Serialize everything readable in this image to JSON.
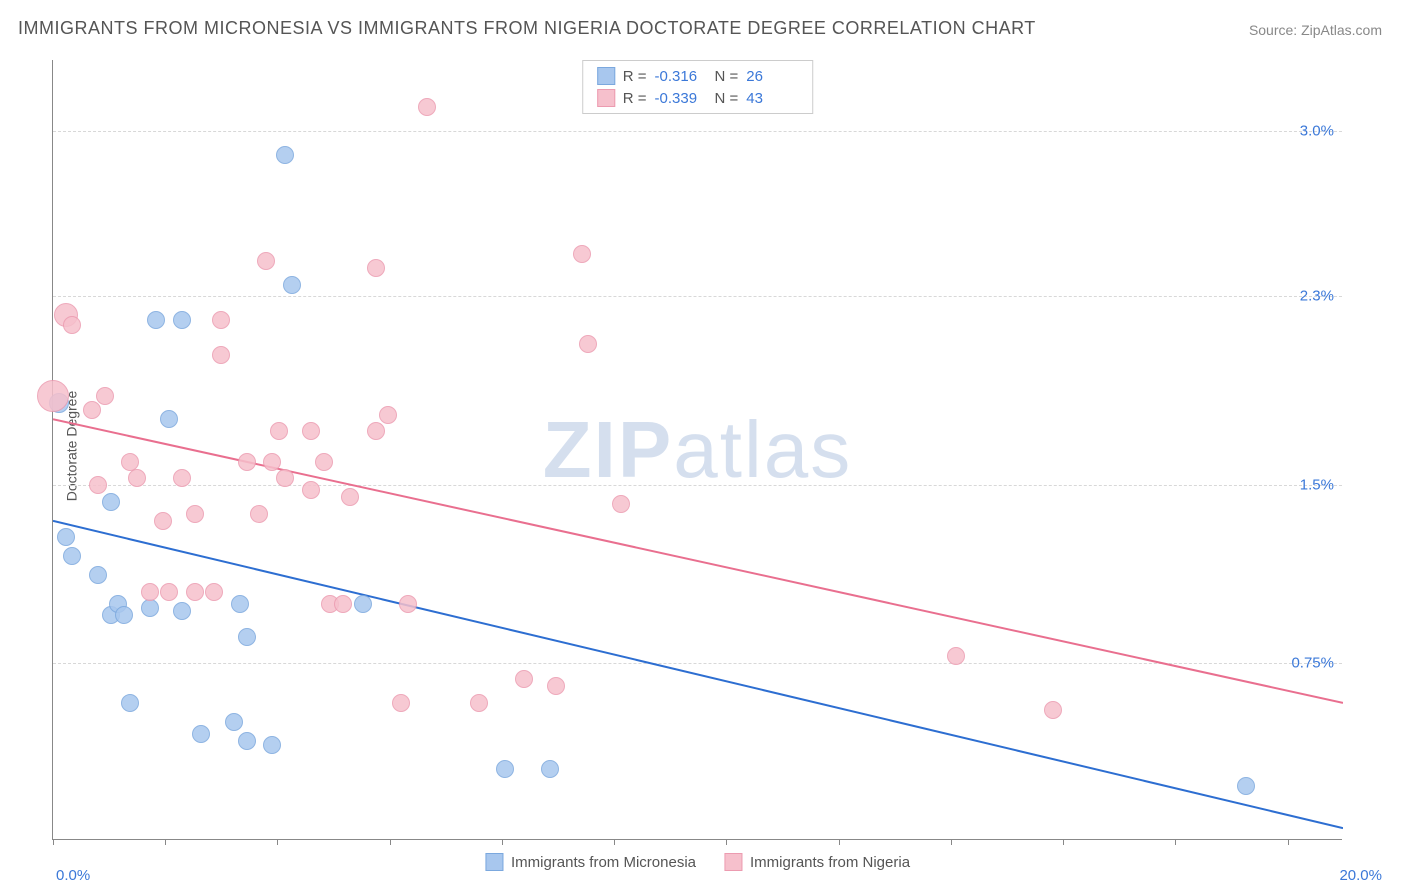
{
  "title": "IMMIGRANTS FROM MICRONESIA VS IMMIGRANTS FROM NIGERIA DOCTORATE DEGREE CORRELATION CHART",
  "source": "Source: ZipAtlas.com",
  "ylabel": "Doctorate Degree",
  "watermark_bold": "ZIP",
  "watermark_light": "atlas",
  "chart": {
    "type": "scatter",
    "background_color": "#ffffff",
    "grid_color": "#d8d8d8",
    "axis_color": "#888888",
    "tick_label_color": "#3b78d8",
    "label_fontsize": 14,
    "tick_fontsize": 15,
    "xlim": [
      0,
      20
    ],
    "ylim": [
      0,
      3.3
    ],
    "xtick_labels": {
      "min": "0.0%",
      "max": "20.0%"
    },
    "xtick_positions_pct": [
      0,
      8.7,
      17.4,
      26.1,
      34.8,
      43.5,
      52.2,
      60.9,
      69.6,
      78.3,
      87.0,
      95.7
    ],
    "ytick_labels": [
      "0.75%",
      "1.5%",
      "2.3%",
      "3.0%"
    ],
    "ytick_values": [
      0.75,
      1.5,
      2.3,
      3.0
    ],
    "series": [
      {
        "name": "Immigrants from Micronesia",
        "fill": "#a8c7ee",
        "stroke": "#7ba8de",
        "marker_radius": 9,
        "trend_color": "#2d6ed1",
        "trend_width": 2,
        "trend_start_y": 1.35,
        "trend_end_y": 0.05,
        "R": "-0.316",
        "N": "26",
        "points": [
          {
            "x": 0.1,
            "y": 1.85,
            "r": 10
          },
          {
            "x": 0.2,
            "y": 1.28
          },
          {
            "x": 0.3,
            "y": 1.2
          },
          {
            "x": 0.7,
            "y": 1.12
          },
          {
            "x": 0.9,
            "y": 1.43
          },
          {
            "x": 0.9,
            "y": 0.95
          },
          {
            "x": 1.0,
            "y": 1.0
          },
          {
            "x": 1.1,
            "y": 0.95
          },
          {
            "x": 1.2,
            "y": 0.58
          },
          {
            "x": 1.5,
            "y": 0.98
          },
          {
            "x": 1.6,
            "y": 2.2
          },
          {
            "x": 1.8,
            "y": 1.78
          },
          {
            "x": 2.0,
            "y": 0.97
          },
          {
            "x": 2.0,
            "y": 2.2
          },
          {
            "x": 2.3,
            "y": 0.45
          },
          {
            "x": 2.8,
            "y": 0.5
          },
          {
            "x": 2.9,
            "y": 1.0
          },
          {
            "x": 3.0,
            "y": 0.42
          },
          {
            "x": 3.0,
            "y": 0.86
          },
          {
            "x": 3.4,
            "y": 0.4
          },
          {
            "x": 3.6,
            "y": 2.9
          },
          {
            "x": 3.7,
            "y": 2.35
          },
          {
            "x": 4.8,
            "y": 1.0
          },
          {
            "x": 7.0,
            "y": 0.3
          },
          {
            "x": 7.7,
            "y": 0.3
          },
          {
            "x": 18.5,
            "y": 0.23
          }
        ]
      },
      {
        "name": "Immigrants from Nigeria",
        "fill": "#f6c0cc",
        "stroke": "#ec9bb0",
        "marker_radius": 9,
        "trend_color": "#e96f8f",
        "trend_width": 2,
        "trend_start_y": 1.78,
        "trend_end_y": 0.58,
        "R": "-0.339",
        "N": "43",
        "points": [
          {
            "x": 0.0,
            "y": 1.88,
            "r": 16
          },
          {
            "x": 0.2,
            "y": 2.22,
            "r": 12
          },
          {
            "x": 0.3,
            "y": 2.18
          },
          {
            "x": 0.6,
            "y": 1.82
          },
          {
            "x": 0.7,
            "y": 1.5
          },
          {
            "x": 0.8,
            "y": 1.88
          },
          {
            "x": 1.2,
            "y": 1.6
          },
          {
            "x": 1.3,
            "y": 1.53
          },
          {
            "x": 1.5,
            "y": 1.05
          },
          {
            "x": 1.7,
            "y": 1.35
          },
          {
            "x": 1.8,
            "y": 1.05
          },
          {
            "x": 2.0,
            "y": 1.53
          },
          {
            "x": 2.2,
            "y": 1.38
          },
          {
            "x": 2.2,
            "y": 1.05
          },
          {
            "x": 2.5,
            "y": 1.05
          },
          {
            "x": 2.6,
            "y": 2.2
          },
          {
            "x": 2.6,
            "y": 2.05
          },
          {
            "x": 3.0,
            "y": 1.6
          },
          {
            "x": 3.2,
            "y": 1.38
          },
          {
            "x": 3.3,
            "y": 2.45
          },
          {
            "x": 3.4,
            "y": 1.6
          },
          {
            "x": 3.5,
            "y": 1.73
          },
          {
            "x": 3.6,
            "y": 1.53
          },
          {
            "x": 4.0,
            "y": 1.73
          },
          {
            "x": 4.0,
            "y": 1.48
          },
          {
            "x": 4.2,
            "y": 1.6
          },
          {
            "x": 4.3,
            "y": 1.0
          },
          {
            "x": 4.5,
            "y": 1.0
          },
          {
            "x": 4.6,
            "y": 1.45
          },
          {
            "x": 5.0,
            "y": 1.73
          },
          {
            "x": 5.0,
            "y": 2.42
          },
          {
            "x": 5.2,
            "y": 1.8
          },
          {
            "x": 5.4,
            "y": 0.58
          },
          {
            "x": 5.5,
            "y": 1.0
          },
          {
            "x": 5.8,
            "y": 3.1
          },
          {
            "x": 6.6,
            "y": 0.58
          },
          {
            "x": 7.3,
            "y": 0.68
          },
          {
            "x": 7.8,
            "y": 0.65
          },
          {
            "x": 8.2,
            "y": 2.48
          },
          {
            "x": 8.3,
            "y": 2.1
          },
          {
            "x": 8.8,
            "y": 1.42
          },
          {
            "x": 14.0,
            "y": 0.78
          },
          {
            "x": 15.5,
            "y": 0.55
          }
        ]
      }
    ]
  },
  "stats_labels": {
    "R": "R =",
    "N": "N ="
  },
  "legend": {
    "series1": "Immigrants from Micronesia",
    "series2": "Immigrants from Nigeria"
  }
}
